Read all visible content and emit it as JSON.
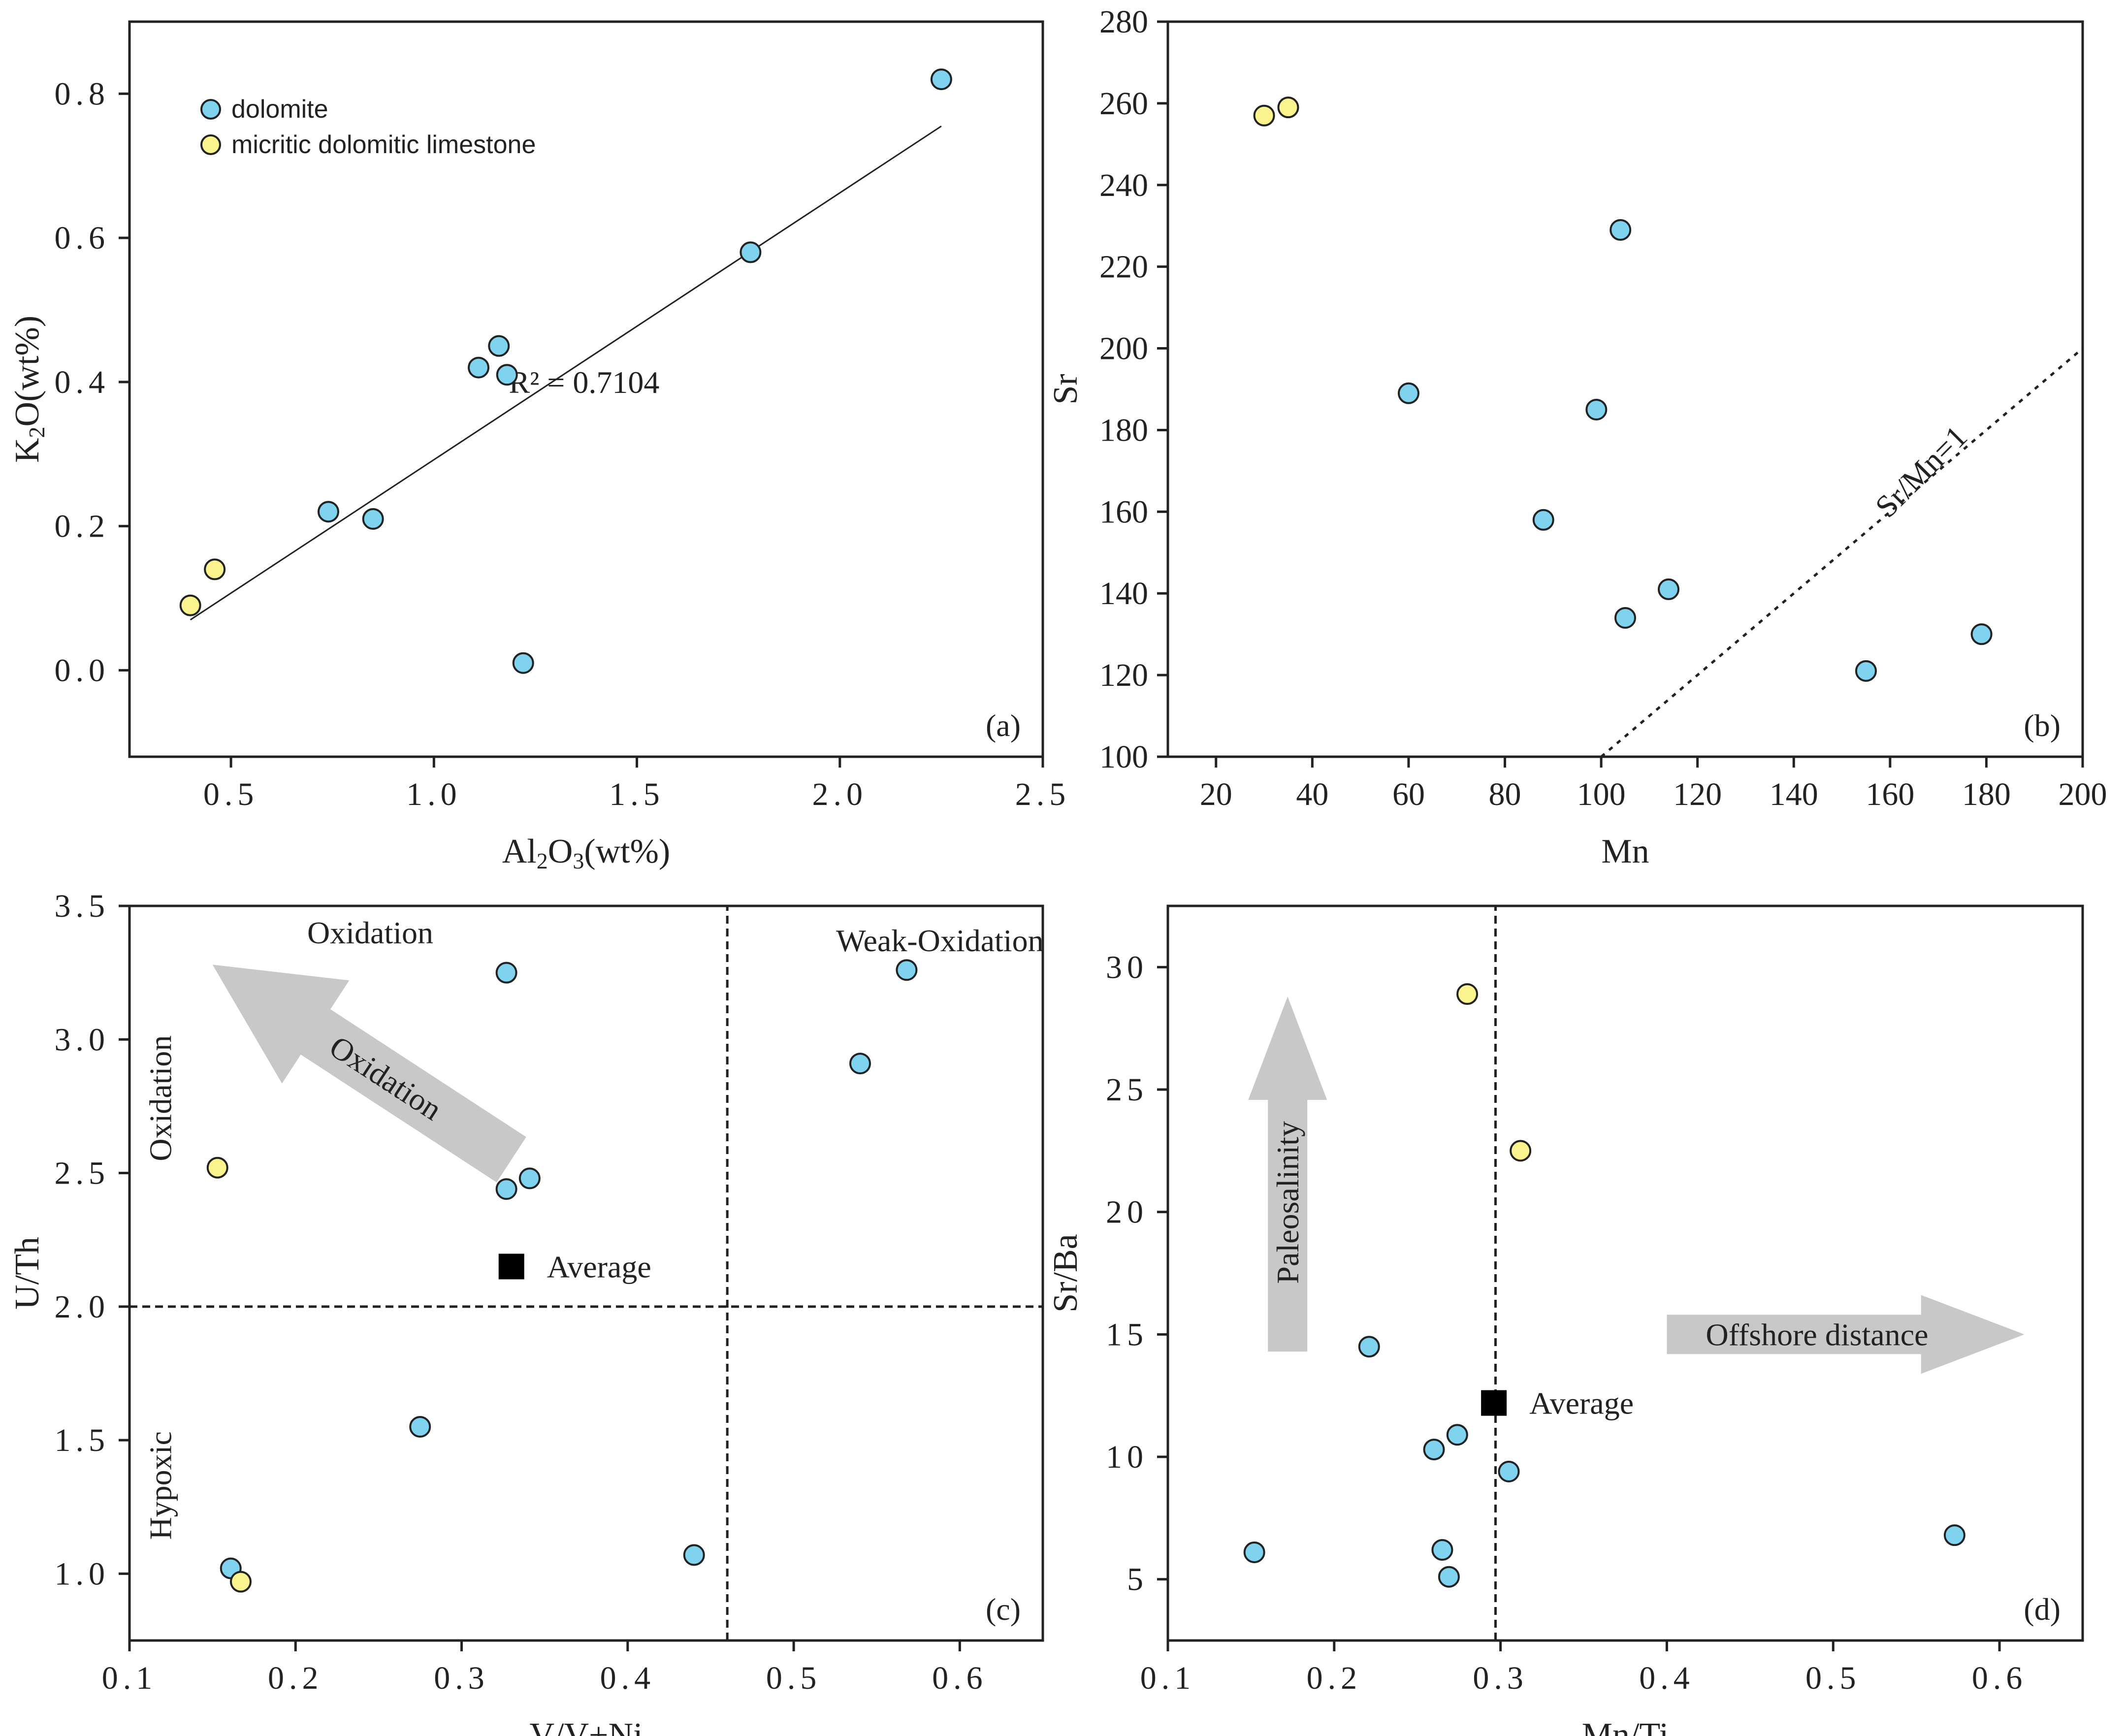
{
  "chart_data": [
    {
      "id": "a",
      "type": "scatter",
      "panel_label": "(a)",
      "xlabel": {
        "base": "Al",
        "sub1": "2",
        "mid": "O",
        "sub2": "3",
        "suffix": "(wt%)"
      },
      "ylabel": {
        "base": "K",
        "sub1": "2",
        "mid": "O",
        "suffix": "(wt%)"
      },
      "xlim": [
        0.25,
        2.5
      ],
      "ylim": [
        -0.12,
        0.9
      ],
      "xticks": [
        0.5,
        1.0,
        1.5,
        2.0,
        2.5
      ],
      "xtick_labels": [
        "0.5",
        "1.0",
        "1.5",
        "2.0",
        "2.5"
      ],
      "yticks": [
        0.0,
        0.2,
        0.4,
        0.6,
        0.8
      ],
      "ytick_labels": [
        "0.0",
        "0.2",
        "0.4",
        "0.6",
        "0.8"
      ],
      "legend": [
        {
          "label": "dolomite",
          "color": "#7fd3ef"
        },
        {
          "label": "micritic dolomitic limestone",
          "color": "#fbf38e"
        }
      ],
      "series": [
        {
          "name": "dolomite",
          "color": "#7fd3ef",
          "x": [
            2.25,
            1.78,
            1.16,
            1.11,
            1.18,
            0.74,
            0.85,
            1.22
          ],
          "y": [
            0.82,
            0.58,
            0.45,
            0.42,
            0.41,
            0.22,
            0.21,
            0.01
          ]
        },
        {
          "name": "micritic dolomitic limestone",
          "color": "#fbf38e",
          "x": [
            0.4,
            0.46
          ],
          "y": [
            0.09,
            0.14
          ]
        }
      ],
      "lines": [
        {
          "style": "solid",
          "x": [
            0.4,
            2.25
          ],
          "y": [
            0.07,
            0.755
          ]
        }
      ],
      "annotations": [
        {
          "text": "R² = 0.7104",
          "x": 1.37,
          "y": 0.385
        }
      ]
    },
    {
      "id": "b",
      "type": "scatter",
      "panel_label": "(b)",
      "xlabel": "Mn",
      "ylabel": "Sr",
      "xlim": [
        10,
        200
      ],
      "ylim": [
        100,
        280
      ],
      "xticks": [
        20,
        40,
        60,
        80,
        100,
        120,
        140,
        160,
        180,
        200
      ],
      "xtick_labels": [
        "20",
        "40",
        "60",
        "80",
        "100",
        "120",
        "140",
        "160",
        "180",
        "200"
      ],
      "yticks": [
        100,
        120,
        140,
        160,
        180,
        200,
        220,
        240,
        260,
        280
      ],
      "ytick_labels": [
        "100",
        "120",
        "140",
        "160",
        "180",
        "200",
        "220",
        "240",
        "260",
        "280"
      ],
      "series": [
        {
          "name": "dolomite",
          "color": "#7fd3ef",
          "x": [
            104,
            60,
            99,
            88,
            114,
            105,
            155,
            179
          ],
          "y": [
            229,
            189,
            185,
            158,
            141,
            134,
            121,
            130
          ]
        },
        {
          "name": "micritic dolomitic limestone",
          "color": "#fbf38e",
          "x": [
            30,
            35
          ],
          "y": [
            257,
            259
          ]
        }
      ],
      "lines": [
        {
          "style": "dotted",
          "x": [
            100,
            200
          ],
          "y": [
            100,
            200
          ]
        }
      ],
      "annotations": [
        {
          "text": "Sr/Mn=1",
          "x": 168,
          "y": 168,
          "rotate": -45
        }
      ]
    },
    {
      "id": "c",
      "type": "scatter",
      "panel_label": "(c)",
      "xlabel": "V/V+Ni",
      "ylabel": "U/Th",
      "xlim": [
        0.1,
        0.65
      ],
      "ylim": [
        0.75,
        3.5
      ],
      "xticks": [
        0.1,
        0.2,
        0.3,
        0.4,
        0.5,
        0.6
      ],
      "xtick_labels": [
        "0.1",
        "0.2",
        "0.3",
        "0.4",
        "0.5",
        "0.6"
      ],
      "yticks": [
        1.0,
        1.5,
        2.0,
        2.5,
        3.0,
        3.5
      ],
      "ytick_labels": [
        "1.0",
        "1.5",
        "2.0",
        "2.5",
        "3.0",
        "3.5"
      ],
      "series": [
        {
          "name": "dolomite",
          "color": "#7fd3ef",
          "x": [
            0.327,
            0.568,
            0.54,
            0.341,
            0.327,
            0.275,
            0.161,
            0.44
          ],
          "y": [
            3.25,
            3.26,
            2.91,
            2.48,
            2.44,
            1.55,
            1.02,
            1.07
          ]
        },
        {
          "name": "micritic dolomitic limestone",
          "color": "#fbf38e",
          "x": [
            0.153,
            0.167
          ],
          "y": [
            2.52,
            0.97
          ]
        }
      ],
      "average": {
        "label": "Average",
        "x": 0.33,
        "y": 2.15
      },
      "lines": [
        {
          "style": "dashed",
          "x": [
            0.1,
            0.65
          ],
          "y": [
            2.0,
            2.0
          ]
        },
        {
          "style": "dashed",
          "x": [
            0.46,
            0.46
          ],
          "y": [
            0.75,
            3.5
          ]
        }
      ],
      "arrow": {
        "label": "Oxidation",
        "from": [
          0.33,
          2.55
        ],
        "to": [
          0.15,
          3.28
        ]
      },
      "annotations": [
        {
          "text": "Oxidation",
          "x": 0.245,
          "y": 3.36
        },
        {
          "text": "Weak-Oxidation",
          "x": 0.588,
          "y": 3.33
        },
        {
          "text": "Oxidation",
          "x": 0.125,
          "y": 2.78,
          "rotate": -90
        },
        {
          "text": "Hypoxic",
          "x": 0.125,
          "y": 1.33,
          "rotate": -90
        }
      ]
    },
    {
      "id": "d",
      "type": "scatter",
      "panel_label": "(d)",
      "xlabel": "Mn/Ti",
      "ylabel": "Sr/Ba",
      "xlim": [
        0.1,
        0.65
      ],
      "ylim": [
        2.5,
        32.5
      ],
      "xticks": [
        0.1,
        0.2,
        0.3,
        0.4,
        0.5,
        0.6
      ],
      "xtick_labels": [
        "0.1",
        "0.2",
        "0.3",
        "0.4",
        "0.5",
        "0.6"
      ],
      "yticks": [
        5,
        10,
        15,
        20,
        25,
        30
      ],
      "ytick_labels": [
        "5",
        "10",
        "15",
        "20",
        "25",
        "30"
      ],
      "series": [
        {
          "name": "dolomite",
          "color": "#7fd3ef",
          "x": [
            0.221,
            0.274,
            0.26,
            0.305,
            0.152,
            0.265,
            0.269,
            0.573
          ],
          "y": [
            14.5,
            10.9,
            10.3,
            9.4,
            6.1,
            6.2,
            5.1,
            6.8
          ]
        },
        {
          "name": "micritic dolomitic limestone",
          "color": "#fbf38e",
          "x": [
            0.28,
            0.312
          ],
          "y": [
            28.9,
            22.5
          ]
        }
      ],
      "average": {
        "label": "Average",
        "x": 0.296,
        "y": 12.2
      },
      "lines": [
        {
          "style": "dashed",
          "x": [
            0.297,
            0.297
          ],
          "y": [
            2.5,
            32.5
          ]
        }
      ],
      "arrows": [
        {
          "label": "Paleosalinity",
          "orientation": "up",
          "from": [
            0.172,
            14.3
          ],
          "to": [
            0.172,
            28.8
          ]
        },
        {
          "label": "Offshore distance",
          "orientation": "right",
          "from": [
            0.4,
            15.0
          ],
          "to": [
            0.615,
            15.0
          ]
        }
      ]
    }
  ]
}
